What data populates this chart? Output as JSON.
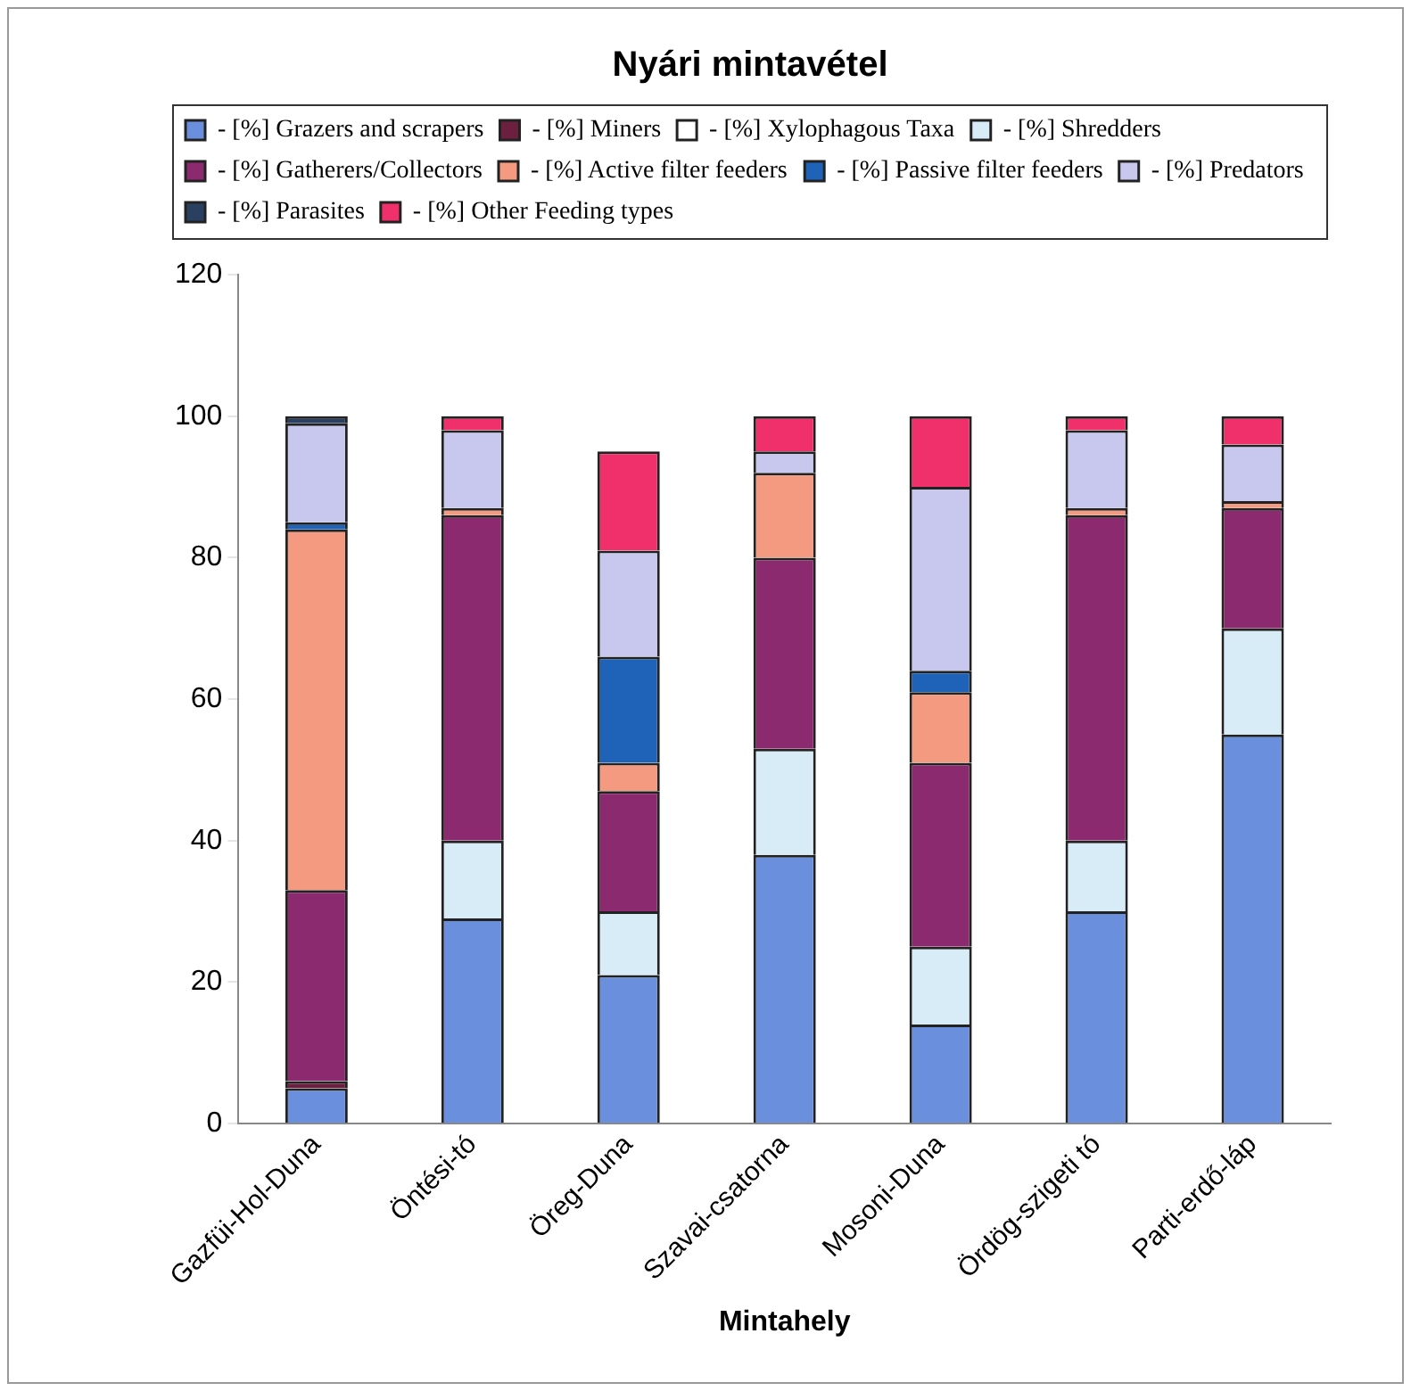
{
  "chart_data": {
    "type": "bar",
    "stacked": true,
    "title": "Nyári mintavétel",
    "xlabel": "Mintahely",
    "categories": [
      "Gazfüi-Hol-Duna",
      "Öntési-tó",
      "Öreg-Duna",
      "Szavai-csatorna",
      "Mosoni-Duna",
      "Ördög-szigeti tó",
      "Parti-erdő-láp"
    ],
    "series": [
      {
        "name": "- [%] Grazers and scrapers",
        "color": "#6a8fdc",
        "values": [
          5,
          29,
          21,
          38,
          14,
          30,
          55
        ]
      },
      {
        "name": "- [%] Miners",
        "color": "#6b2040",
        "values": [
          1,
          0,
          0,
          0,
          0,
          0,
          0
        ]
      },
      {
        "name": "- [%] Xylophagous Taxa",
        "color": "#ffffff",
        "values": [
          0,
          0,
          0,
          0,
          0,
          0,
          0
        ]
      },
      {
        "name": "- [%] Shredders",
        "color": "#d8ecf8",
        "values": [
          0,
          11,
          9,
          15,
          11,
          10,
          15
        ]
      },
      {
        "name": "- [%] Gatherers/Collectors",
        "color": "#8b2a6e",
        "values": [
          27,
          46,
          17,
          27,
          26,
          46,
          17
        ]
      },
      {
        "name": "- [%] Active filter feeders",
        "color": "#f49a80",
        "values": [
          51,
          1,
          4,
          12,
          10,
          1,
          1
        ]
      },
      {
        "name": "- [%] Passive filter feeders",
        "color": "#1f63b8",
        "values": [
          1,
          0,
          15,
          0,
          3,
          0,
          0
        ]
      },
      {
        "name": "- [%] Predators",
        "color": "#c8c8ee",
        "values": [
          14,
          11,
          15,
          3,
          26,
          11,
          8
        ]
      },
      {
        "name": "- [%] Parasites",
        "color": "#2a4060",
        "values": [
          1,
          0,
          0,
          0,
          0,
          0,
          0
        ]
      },
      {
        "name": "- [%] Other Feeding types",
        "color": "#f0306a",
        "values": [
          0,
          2,
          14,
          5,
          10,
          2,
          4
        ]
      }
    ],
    "ylim": [
      0,
      120
    ],
    "yticks": [
      0,
      20,
      40,
      60,
      80,
      100,
      120
    ],
    "grid": false,
    "legend": "top"
  }
}
